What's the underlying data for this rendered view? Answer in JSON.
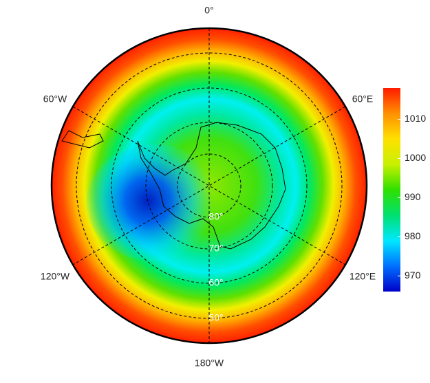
{
  "map": {
    "longitude_labels": [
      "0°",
      "60°E",
      "120°E",
      "180°W",
      "120°W",
      "60°W"
    ],
    "latitude_labels": [
      "80°",
      "70°",
      "60°",
      "50°"
    ],
    "colorbar": {
      "lim": [
        966,
        1018
      ],
      "ticks": [
        970,
        980,
        990,
        1000,
        1010
      ],
      "colors": [
        "#0000c8",
        "#0070ff",
        "#00e8ff",
        "#00e070",
        "#30e000",
        "#c8f000",
        "#ffe000",
        "#ff9000",
        "#ff1a00"
      ]
    }
  }
}
